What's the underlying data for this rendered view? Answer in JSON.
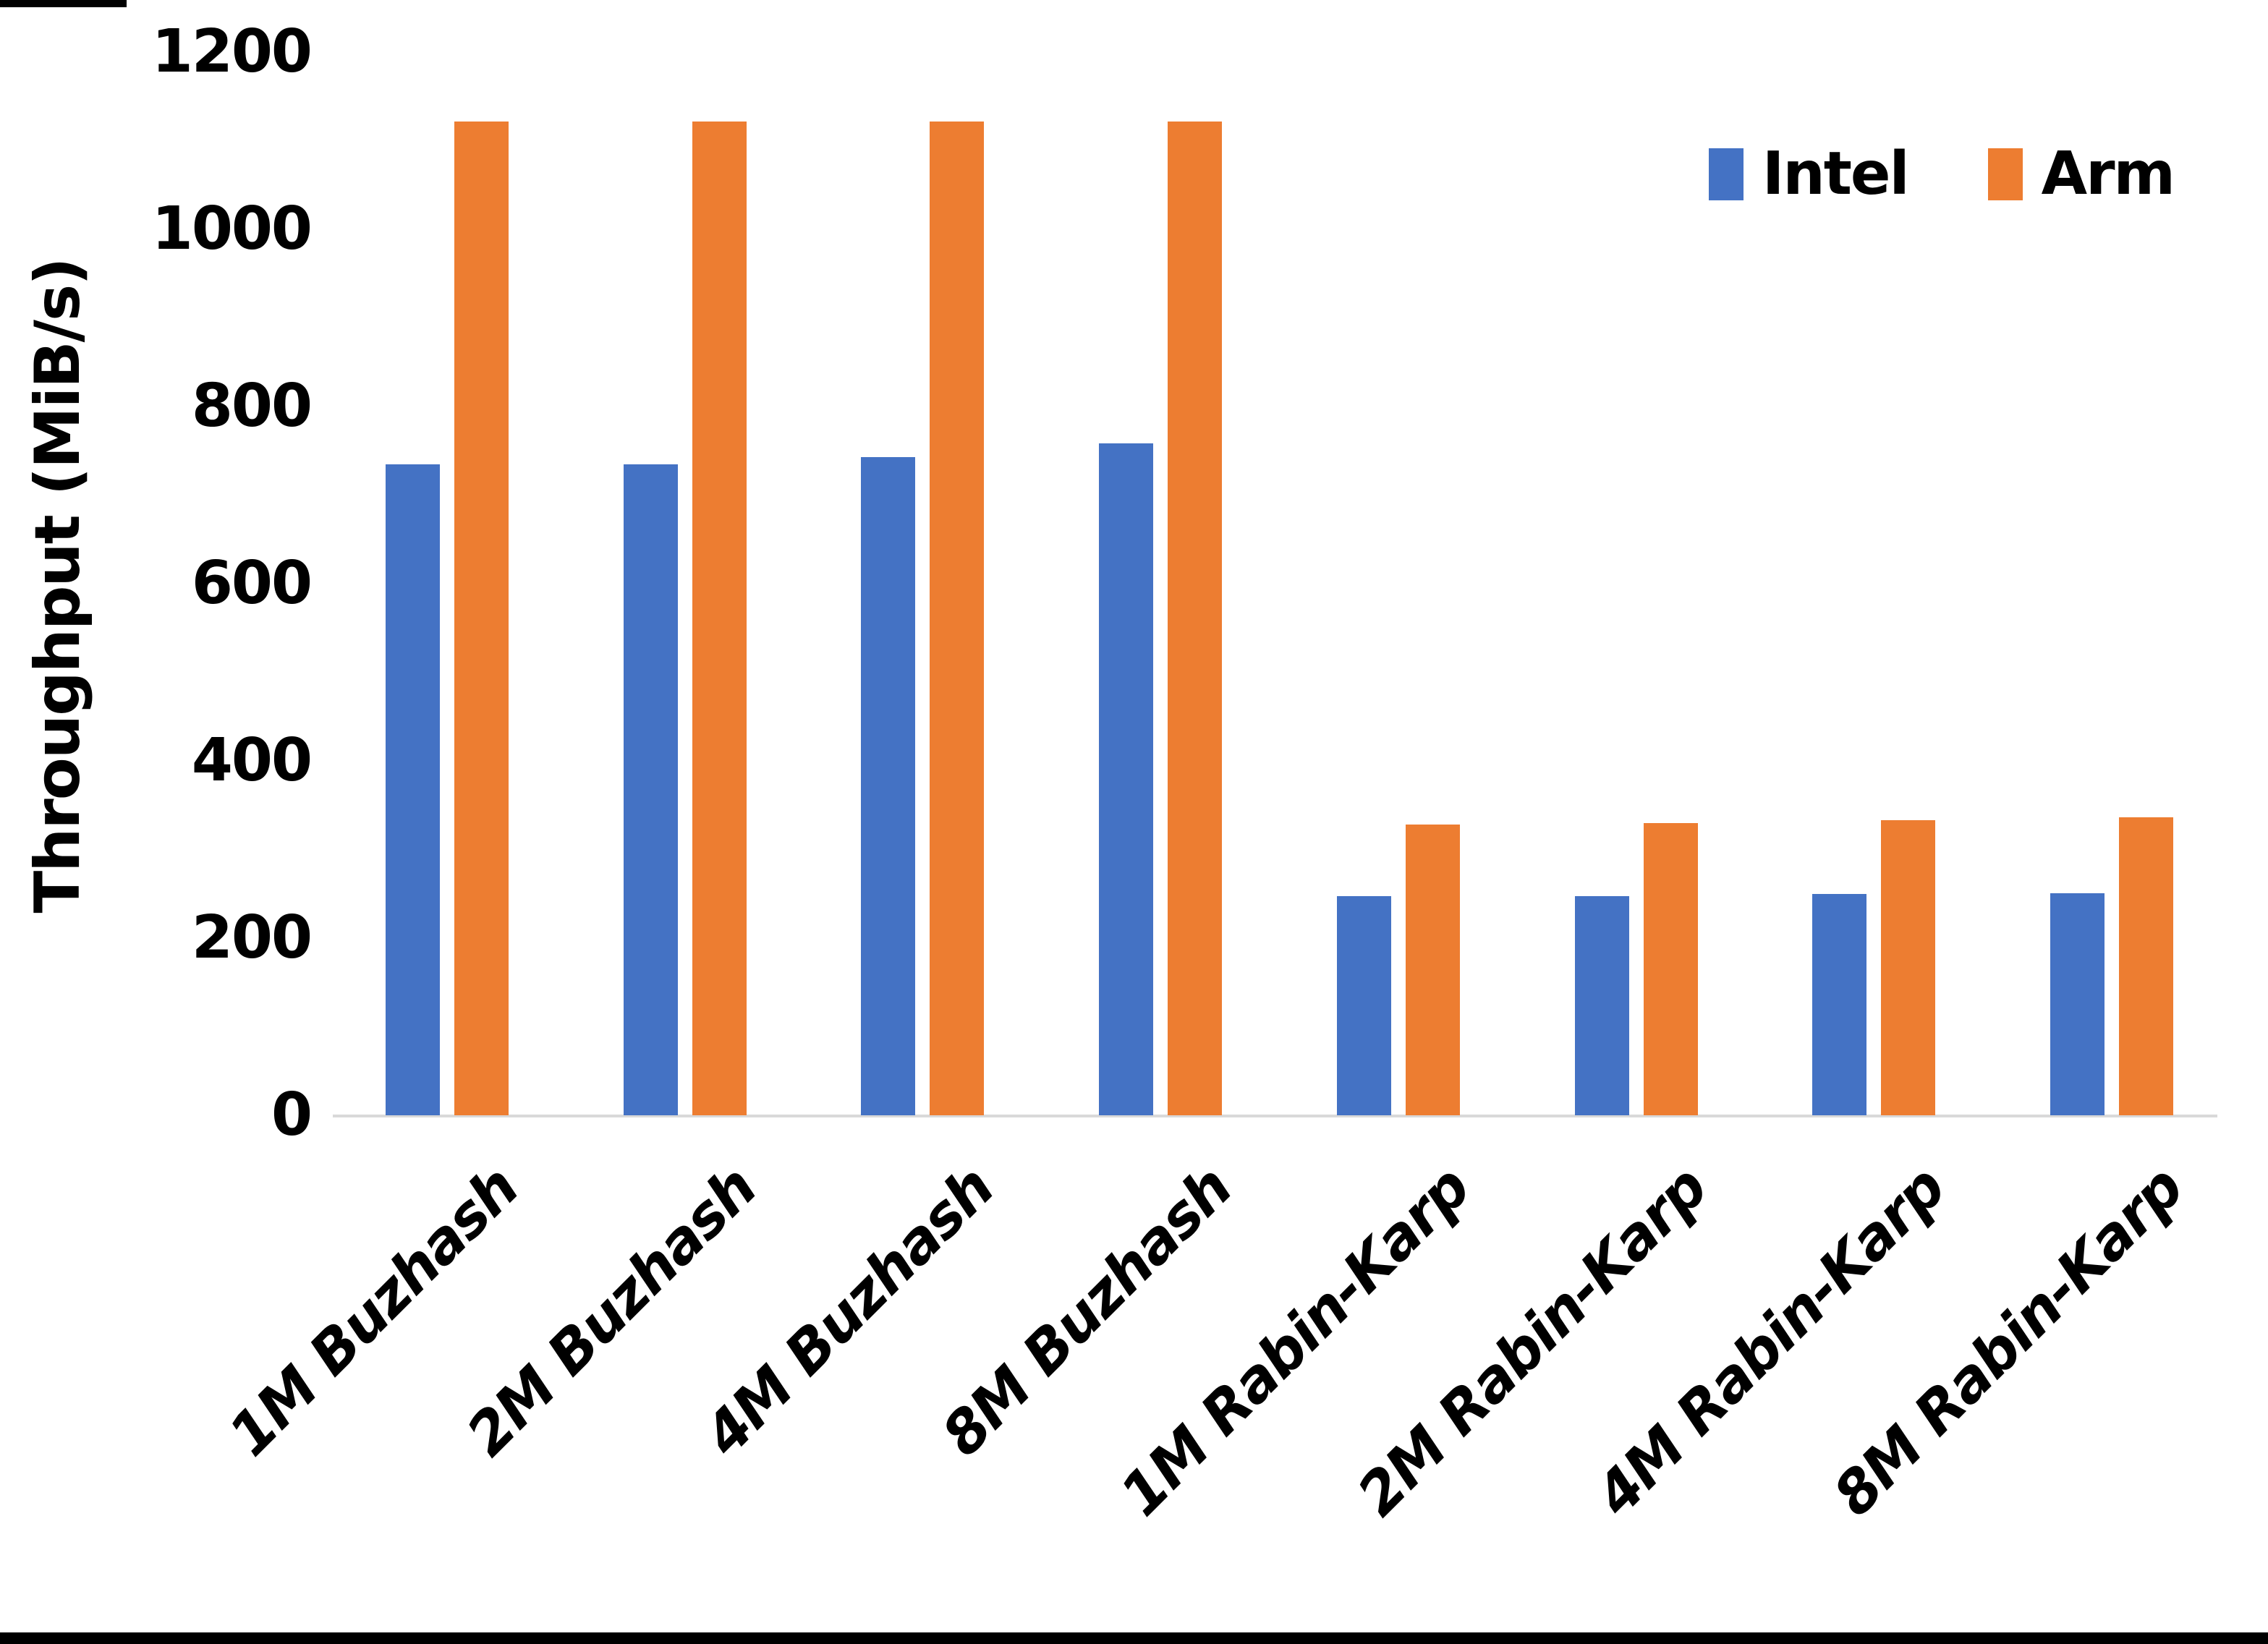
{
  "chart_data": {
    "type": "bar",
    "title": "",
    "ylabel": "Throughput (MiB/s)",
    "xlabel": "",
    "ylim": [
      0,
      1200
    ],
    "yticks": [
      0,
      200,
      400,
      600,
      800,
      1000,
      1200
    ],
    "grid": false,
    "legend_position": "top-right",
    "categories": [
      "1M Buzhash",
      "2M Buzhash",
      "4M Buzhash",
      "8M Buzhash",
      "1M Rabin-Karp",
      "2M Rabin-Karp",
      "4M Rabin-Karp",
      "8M Rabin-Karp"
    ],
    "series": [
      {
        "name": "Intel",
        "color": "#4472C4",
        "values": [
          735,
          735,
          743,
          758,
          247,
          247,
          250,
          251
        ]
      },
      {
        "name": "Arm",
        "color": "#ED7D31",
        "values": [
          1122,
          1122,
          1122,
          1122,
          328,
          330,
          333,
          336
        ]
      }
    ],
    "axis_color": "#D9D9D9",
    "text_color": "#000000"
  }
}
